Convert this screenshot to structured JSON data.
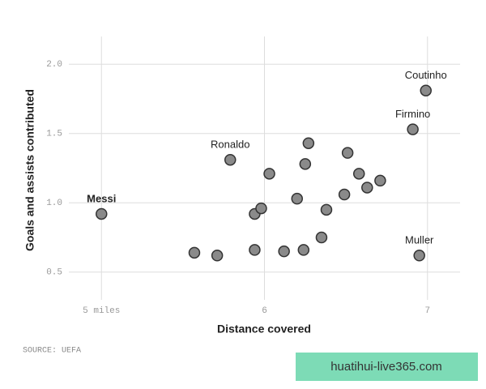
{
  "chart_data": {
    "type": "scatter",
    "y_label": "Goals and assists contributed",
    "x_label": "Distance covered",
    "source": "SOURCE: UEFA",
    "x": [
      5.0,
      5.79,
      6.99,
      6.91,
      6.95,
      5.57,
      5.71,
      5.94,
      6.12,
      6.24,
      6.35,
      5.94,
      5.98,
      6.38,
      6.2,
      6.49,
      6.63,
      6.71,
      6.58,
      6.03,
      6.25,
      6.27,
      6.51
    ],
    "values": [
      0.92,
      1.31,
      1.81,
      1.53,
      0.62,
      0.64,
      0.62,
      0.66,
      0.65,
      0.66,
      0.75,
      0.92,
      0.96,
      0.95,
      1.03,
      1.06,
      1.11,
      1.16,
      1.21,
      1.21,
      1.28,
      1.43,
      1.36
    ],
    "point_labels": [
      "Messi",
      "Ronaldo",
      "Coutinho",
      "Firmino",
      "Muller",
      null,
      null,
      null,
      null,
      null,
      null,
      null,
      null,
      null,
      null,
      null,
      null,
      null,
      null,
      null,
      null,
      null,
      null
    ],
    "color": "#8a8a8a",
    "xlim": [
      4.8,
      7.2
    ],
    "ylim": [
      0.3,
      2.2
    ],
    "xticks": [
      {
        "value": 5,
        "label": "5 miles"
      },
      6,
      7
    ],
    "yticks": [
      {
        "value": 0.5,
        "label": "0.5"
      },
      {
        "value": 1.0,
        "label": "1.0"
      },
      {
        "value": 1.5,
        "label": "1.5"
      },
      {
        "value": 2.0,
        "label": "2.0"
      }
    ],
    "grid": true
  },
  "watermark": "huatihui-live365.com"
}
